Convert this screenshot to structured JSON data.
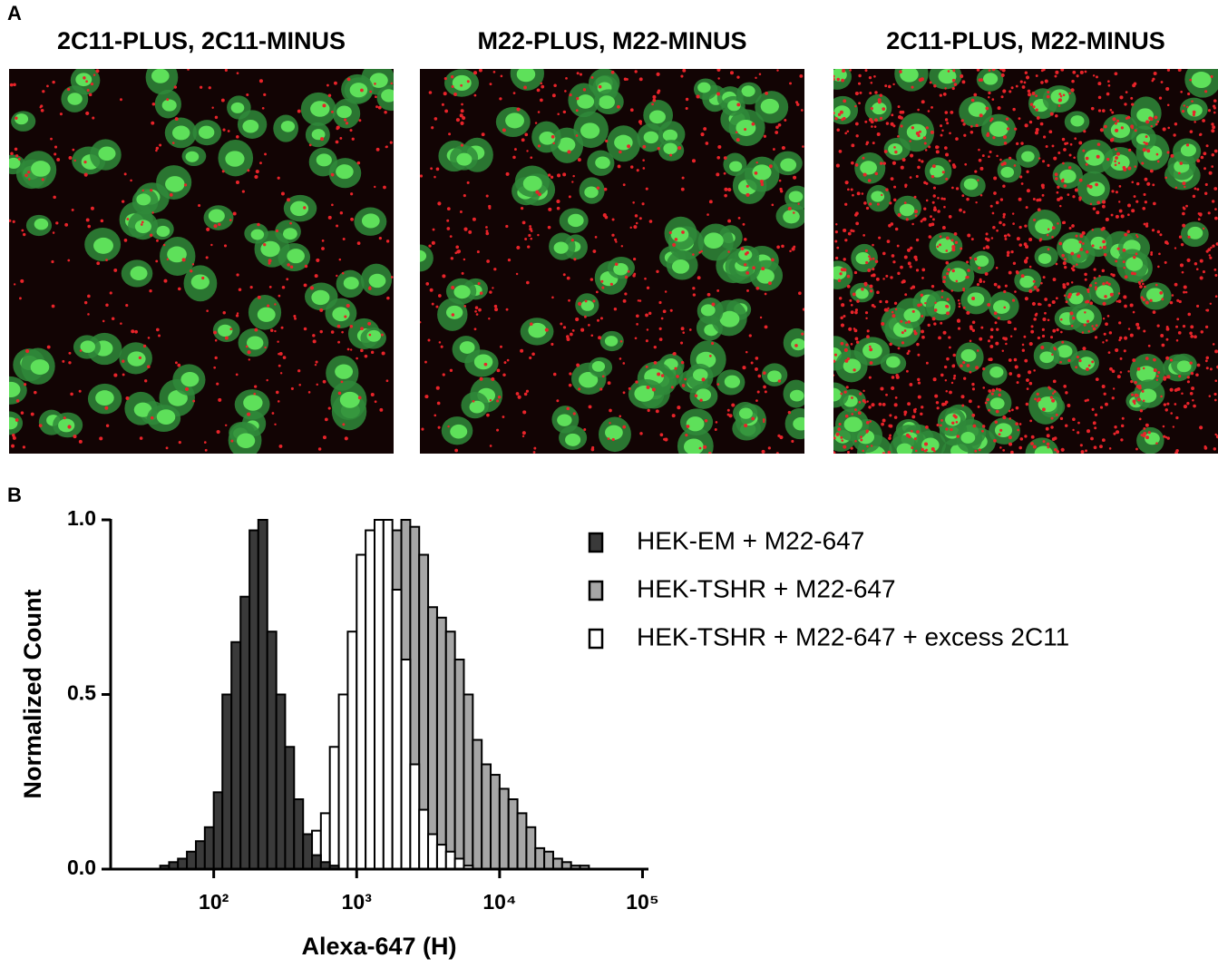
{
  "figure": {
    "panel_a": {
      "label": "A",
      "images": [
        {
          "title": "2C11-PLUS, 2C11-MINUS"
        },
        {
          "title": "M22-PLUS, M22-MINUS"
        },
        {
          "title": "2C11-PLUS, M22-MINUS"
        }
      ]
    },
    "panel_b": {
      "label": "B"
    }
  },
  "chart_data": {
    "type": "histogram",
    "x_label": "Alexa-647 (H)",
    "y_label": "Normalized Count",
    "log_x": true,
    "xlim": [
      19,
      110000
    ],
    "xticks": [
      {
        "value": 100,
        "label": "10²"
      },
      {
        "value": 1000,
        "label": "10³"
      },
      {
        "value": 10000,
        "label": "10⁴"
      },
      {
        "value": 100000,
        "label": "10⁵"
      }
    ],
    "ylim": [
      0,
      1.0
    ],
    "yticks": [
      {
        "value": 0,
        "label": "0.0"
      },
      0.5,
      {
        "value": 1.0,
        "label": "1.0"
      }
    ],
    "legend": "upper right",
    "bins": [
      31.6,
      36.5,
      42.2,
      48.7,
      56.2,
      64.9,
      75.0,
      86.6,
      100,
      115,
      133,
      154,
      178,
      205,
      237,
      274,
      316,
      365,
      422,
      487,
      562,
      649,
      750,
      866,
      1000,
      1155,
      1334,
      1540,
      1778,
      2054,
      2371,
      2738,
      3162,
      3652,
      4217,
      4870,
      5623,
      6494,
      7499,
      8660,
      10000,
      11548,
      13335,
      15399,
      17783,
      20535,
      23714,
      27384,
      31623,
      36517,
      42170,
      48697,
      56234
    ],
    "series": [
      {
        "name": "HEK-EM + M22-647",
        "color": "#3a3a3a",
        "values": [
          0,
          0,
          0.01,
          0.02,
          0.03,
          0.05,
          0.08,
          0.12,
          0.22,
          0.5,
          0.65,
          0.78,
          0.97,
          1.0,
          0.68,
          0.5,
          0.35,
          0.2,
          0.1,
          0.04,
          0.02,
          0.01,
          0,
          0,
          0,
          0,
          0,
          0,
          0,
          0,
          0,
          0,
          0,
          0,
          0,
          0,
          0,
          0,
          0,
          0,
          0,
          0,
          0,
          0,
          0,
          0,
          0,
          0,
          0,
          0,
          0,
          0
        ]
      },
      {
        "name": "HEK-TSHR + M22-647",
        "color": "#a6a6a6",
        "values": [
          0,
          0,
          0,
          0,
          0,
          0,
          0,
          0,
          0,
          0,
          0,
          0,
          0,
          0,
          0,
          0,
          0,
          0.01,
          0.02,
          0.03,
          0.05,
          0.07,
          0.1,
          0.15,
          0.22,
          0.38,
          0.55,
          0.8,
          0.97,
          1.0,
          0.98,
          0.9,
          0.75,
          0.72,
          0.68,
          0.6,
          0.5,
          0.37,
          0.3,
          0.27,
          0.23,
          0.2,
          0.16,
          0.12,
          0.06,
          0.05,
          0.03,
          0.02,
          0.01,
          0.01,
          0,
          0
        ]
      },
      {
        "name": "HEK-TSHR + M22-647 + excess 2C11",
        "color": "#ffffff",
        "values": [
          0,
          0,
          0,
          0,
          0,
          0,
          0,
          0,
          0,
          0,
          0,
          0,
          0,
          0,
          0,
          0,
          0.03,
          0.06,
          0.09,
          0.11,
          0.16,
          0.35,
          0.5,
          0.68,
          0.9,
          0.97,
          1.0,
          1.0,
          0.8,
          0.6,
          0.3,
          0.17,
          0.1,
          0.07,
          0.05,
          0.03,
          0.01,
          0,
          0,
          0,
          0,
          0,
          0,
          0,
          0,
          0,
          0,
          0,
          0,
          0,
          0,
          0
        ]
      }
    ]
  }
}
